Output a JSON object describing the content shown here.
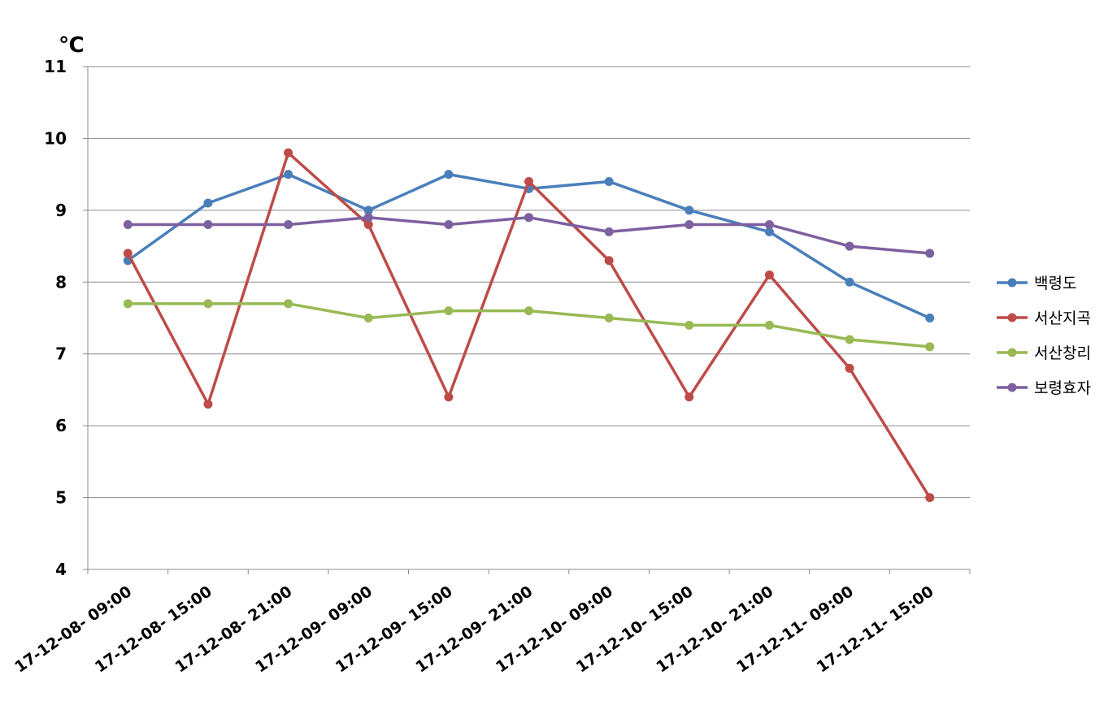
{
  "chart_data": {
    "type": "line",
    "unit_label": "℃",
    "categories": [
      "17-12-08- 09:00",
      "17-12-08- 15:00",
      "17-12-08- 21:00",
      "17-12-09- 09:00",
      "17-12-09- 15:00",
      "17-12-09- 21:00",
      "17-12-10- 09:00",
      "17-12-10- 15:00",
      "17-12-10- 21:00",
      "17-12-11- 09:00",
      "17-12-11- 15:00"
    ],
    "series": [
      {
        "name": "백령도",
        "color": "#4a7ebb",
        "values": [
          8.3,
          9.1,
          9.5,
          9.0,
          9.5,
          9.3,
          9.4,
          9.0,
          8.7,
          8.0,
          7.5
        ]
      },
      {
        "name": "서산지곡",
        "color": "#be4b48",
        "values": [
          8.4,
          6.3,
          9.8,
          8.8,
          6.4,
          9.4,
          8.3,
          6.4,
          8.1,
          6.8,
          5.0
        ]
      },
      {
        "name": "서산창리",
        "color": "#98b954",
        "values": [
          7.7,
          7.7,
          7.7,
          7.5,
          7.6,
          7.6,
          7.5,
          7.4,
          7.4,
          7.2,
          7.1
        ]
      },
      {
        "name": "보령효자",
        "color": "#7d60a0",
        "values": [
          8.8,
          8.8,
          8.8,
          8.9,
          8.8,
          8.9,
          8.7,
          8.8,
          8.8,
          8.5,
          8.4
        ]
      }
    ],
    "ylim": [
      4,
      11
    ],
    "yticks": [
      4,
      5,
      6,
      7,
      8,
      9,
      10,
      11
    ],
    "grid": true,
    "legend_position": "right"
  }
}
